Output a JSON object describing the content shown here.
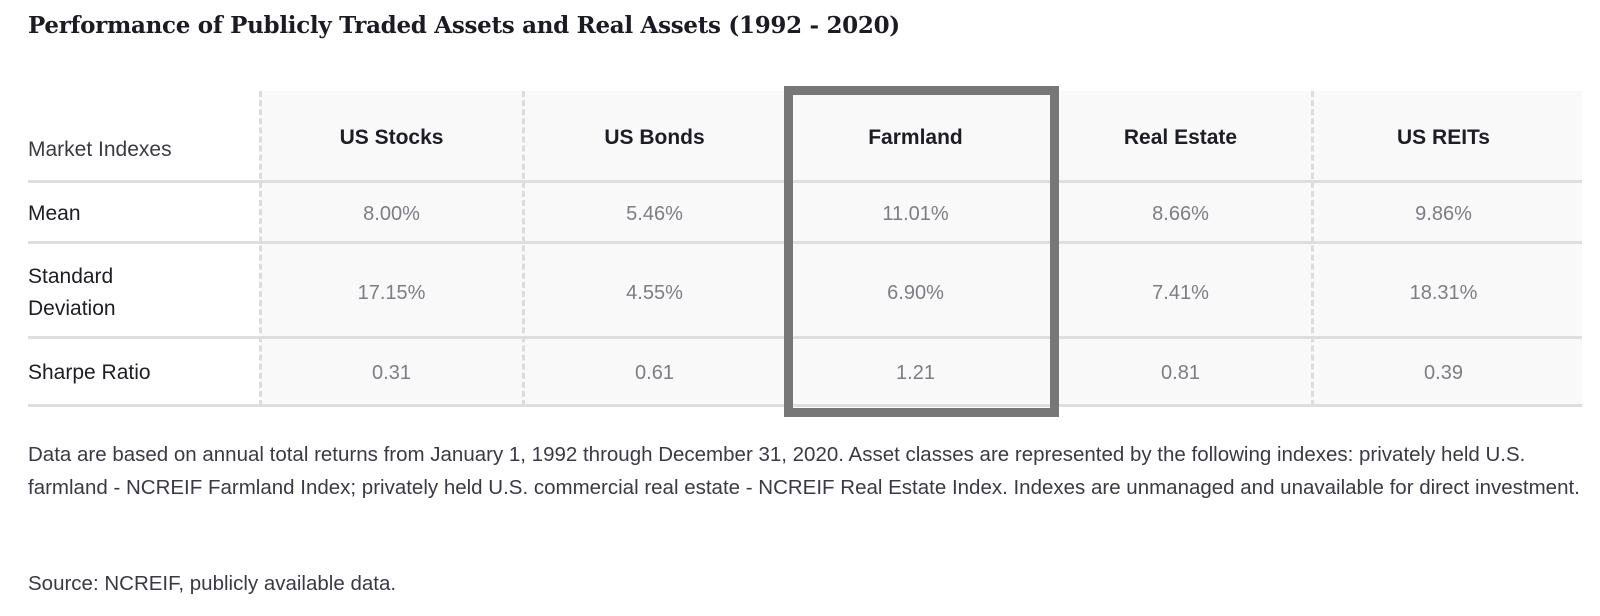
{
  "title": "Performance of Publicly Traded Assets and Real Assets (1992 - 2020)",
  "chart_data": {
    "type": "table",
    "corner_label": "Market Indexes",
    "columns": [
      "US Stocks",
      "US Bonds",
      "Farmland",
      "Real Estate",
      "US REITs"
    ],
    "highlighted_column": "Farmland",
    "rows": [
      {
        "label": "Mean",
        "values": [
          "8.00%",
          "5.46%",
          "11.01%",
          "8.66%",
          "9.86%"
        ]
      },
      {
        "label": "Standard Deviation",
        "values": [
          "17.15%",
          "4.55%",
          "6.90%",
          "7.41%",
          "18.31%"
        ]
      },
      {
        "label": "Sharpe Ratio",
        "values": [
          "0.31",
          "0.61",
          "1.21",
          "0.81",
          "0.39"
        ]
      }
    ]
  },
  "footnote": "Data are based on annual total returns from January 1, 1992 through December 31, 2020. Asset classes are represented by the following indexes: privately held U.S. farmland - NCREIF Farmland Index; privately held U.S. commercial real estate - NCREIF Real Estate Index. Indexes are unmanaged and unavailable for direct investment.",
  "source": "Source: NCREIF, publicly available data.",
  "colors": {
    "highlight_border": "#777777",
    "column_background": "#f9f9f9",
    "value_text": "#7d7d86",
    "rule": "#dedede"
  }
}
